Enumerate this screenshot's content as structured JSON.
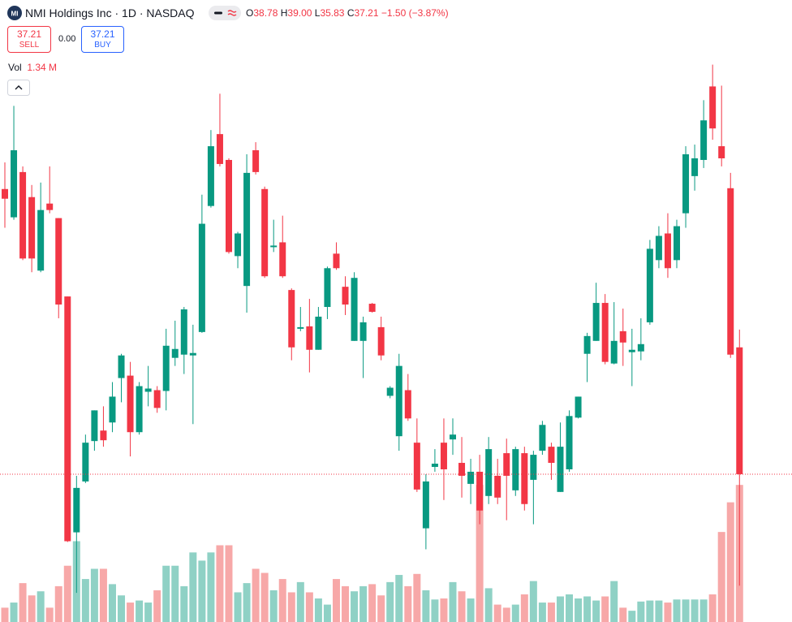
{
  "header": {
    "logo": "MI",
    "title": "NMI Holdings Inc · 1D · NASDAQ",
    "o_label": "O",
    "o_value": "38.78",
    "h_label": "H",
    "h_value": "39.00",
    "l_label": "L",
    "l_value": "35.83",
    "c_label": "C",
    "c_value": "37.21",
    "change": "−1.50 (−3.87%)"
  },
  "trade": {
    "sell_price": "37.21",
    "sell_label": "SELL",
    "spread": "0.00",
    "buy_price": "37.21",
    "buy_label": "BUY"
  },
  "volume_legend": {
    "label": "Vol",
    "value": "1.34 M"
  },
  "chart_data": {
    "type": "candlestick",
    "up_color": "#089981",
    "down_color": "#f23645",
    "volume_up_color": "#8fd1c5",
    "volume_down_color": "#f7a8a8",
    "ylim": [
      35.38,
      43.08
    ],
    "vlim": [
      0,
      6.08
    ],
    "open": [
      40.74,
      40.39,
      40.95,
      40.64,
      39.73,
      40.56,
      40.38,
      39.41,
      36.49,
      37.12,
      37.62,
      37.75,
      37.85,
      38.4,
      38.43,
      37.73,
      38.23,
      38.25,
      38.24,
      38.65,
      38.69,
      38.68,
      38.97,
      40.53,
      41.42,
      41.1,
      39.91,
      39.54,
      41.22,
      40.74,
      40.02,
      40.08,
      39.49,
      39.01,
      39.04,
      38.75,
      39.28,
      39.94,
      39.53,
      38.86,
      38.86,
      39.32,
      39.03,
      38.18,
      37.68,
      38.25,
      37.6,
      36.54,
      37.3,
      37.6,
      37.64,
      37.35,
      37.09,
      37.24,
      36.94,
      37.19,
      37.47,
      37.01,
      37.47,
      37.14,
      37.5,
      37.55,
      36.99,
      37.27,
      37.91,
      38.7,
      38.86,
      39.33,
      38.58,
      38.98,
      38.72,
      38.73,
      39.09,
      39.86,
      40.19,
      39.86,
      40.44,
      40.9,
      41.1,
      42.01,
      41.27,
      40.75,
      38.78
    ],
    "high": [
      41.07,
      41.77,
      41.02,
      40.79,
      40.82,
      41.02,
      40.38,
      39.41,
      37.19,
      37.7,
      38.0,
      38.05,
      38.35,
      38.7,
      38.6,
      38.35,
      38.55,
      38.3,
      39.01,
      39.11,
      39.28,
      39.06,
      40.67,
      41.47,
      41.92,
      41.12,
      40.21,
      41.17,
      41.32,
      40.77,
      40.36,
      40.41,
      39.51,
      39.28,
      39.38,
      39.28,
      39.78,
      40.08,
      39.66,
      39.71,
      39.16,
      39.33,
      39.16,
      38.3,
      38.7,
      38.45,
      37.9,
      37.21,
      37.52,
      37.9,
      37.9,
      37.67,
      37.4,
      37.45,
      37.67,
      37.4,
      37.65,
      37.55,
      37.55,
      37.5,
      37.87,
      37.6,
      37.85,
      38.0,
      38.17,
      38.96,
      39.58,
      39.44,
      39.34,
      39.26,
      39.01,
      39.14,
      40.11,
      40.28,
      40.44,
      40.36,
      41.27,
      41.29,
      41.84,
      42.28,
      42.02,
      40.94,
      39.0
    ],
    "low": [
      40.26,
      40.36,
      39.86,
      39.71,
      39.71,
      40.44,
      39.14,
      36.37,
      35.74,
      37.1,
      37.5,
      37.55,
      37.73,
      38.1,
      37.43,
      37.7,
      38.05,
      37.97,
      38.0,
      38.55,
      38.45,
      37.83,
      38.96,
      40.51,
      41.02,
      39.94,
      39.76,
      39.21,
      40.92,
      39.64,
      39.96,
      39.64,
      38.62,
      38.98,
      38.47,
      38.75,
      39.13,
      39.74,
      39.18,
      38.86,
      38.4,
      39.21,
      38.62,
      38.15,
      37.5,
      37.87,
      36.99,
      36.28,
      37.24,
      36.89,
      37.45,
      36.92,
      36.84,
      36.59,
      36.84,
      36.84,
      36.64,
      36.94,
      36.76,
      36.59,
      37.45,
      37.14,
      36.99,
      37.24,
      37.9,
      38.35,
      38.86,
      38.57,
      38.57,
      38.55,
      38.3,
      38.62,
      39.06,
      39.76,
      39.64,
      39.76,
      40.26,
      40.72,
      41.0,
      41.35,
      41.02,
      38.65,
      35.83
    ],
    "close": [
      40.62,
      41.22,
      39.88,
      39.88,
      40.48,
      40.48,
      39.31,
      36.38,
      37.04,
      37.6,
      38.0,
      37.63,
      38.17,
      38.68,
      37.73,
      38.3,
      38.27,
      38.03,
      38.8,
      38.76,
      39.25,
      38.71,
      40.31,
      41.27,
      41.05,
      39.96,
      40.19,
      40.94,
      40.95,
      39.66,
      40.04,
      39.66,
      38.78,
      39.03,
      38.75,
      39.16,
      39.76,
      39.76,
      39.31,
      39.64,
      39.09,
      39.22,
      38.68,
      38.28,
      38.55,
      37.9,
      37.02,
      37.12,
      37.34,
      37.27,
      37.7,
      37.19,
      37.24,
      36.76,
      37.52,
      36.92,
      37.19,
      37.52,
      36.84,
      37.45,
      37.82,
      37.35,
      37.55,
      37.93,
      38.17,
      38.92,
      39.33,
      38.6,
      38.86,
      38.84,
      38.75,
      38.82,
      40.0,
      40.16,
      39.76,
      40.28,
      41.17,
      41.12,
      41.59,
      41.49,
      41.12,
      38.69,
      37.21
    ],
    "volume": [
      0.14,
      0.19,
      0.38,
      0.26,
      0.3,
      0.14,
      0.35,
      0.55,
      0.79,
      0.42,
      0.52,
      0.52,
      0.37,
      0.26,
      0.19,
      0.21,
      0.19,
      0.31,
      0.55,
      0.55,
      0.35,
      0.68,
      0.6,
      0.68,
      0.75,
      0.75,
      0.29,
      0.38,
      0.52,
      0.48,
      0.31,
      0.42,
      0.29,
      0.39,
      0.29,
      0.23,
      0.17,
      0.42,
      0.35,
      0.3,
      0.35,
      0.37,
      0.26,
      0.39,
      0.46,
      0.35,
      0.47,
      0.31,
      0.22,
      0.23,
      0.39,
      0.3,
      0.23,
      1.34,
      0.33,
      0.17,
      0.14,
      0.17,
      0.27,
      0.4,
      0.19,
      0.19,
      0.25,
      0.27,
      0.23,
      0.25,
      0.21,
      0.25,
      0.4,
      0.14,
      0.11,
      0.2,
      0.21,
      0.21,
      0.19,
      0.22,
      0.22,
      0.22,
      0.22,
      0.27,
      0.88,
      1.17,
      1.34
    ]
  }
}
